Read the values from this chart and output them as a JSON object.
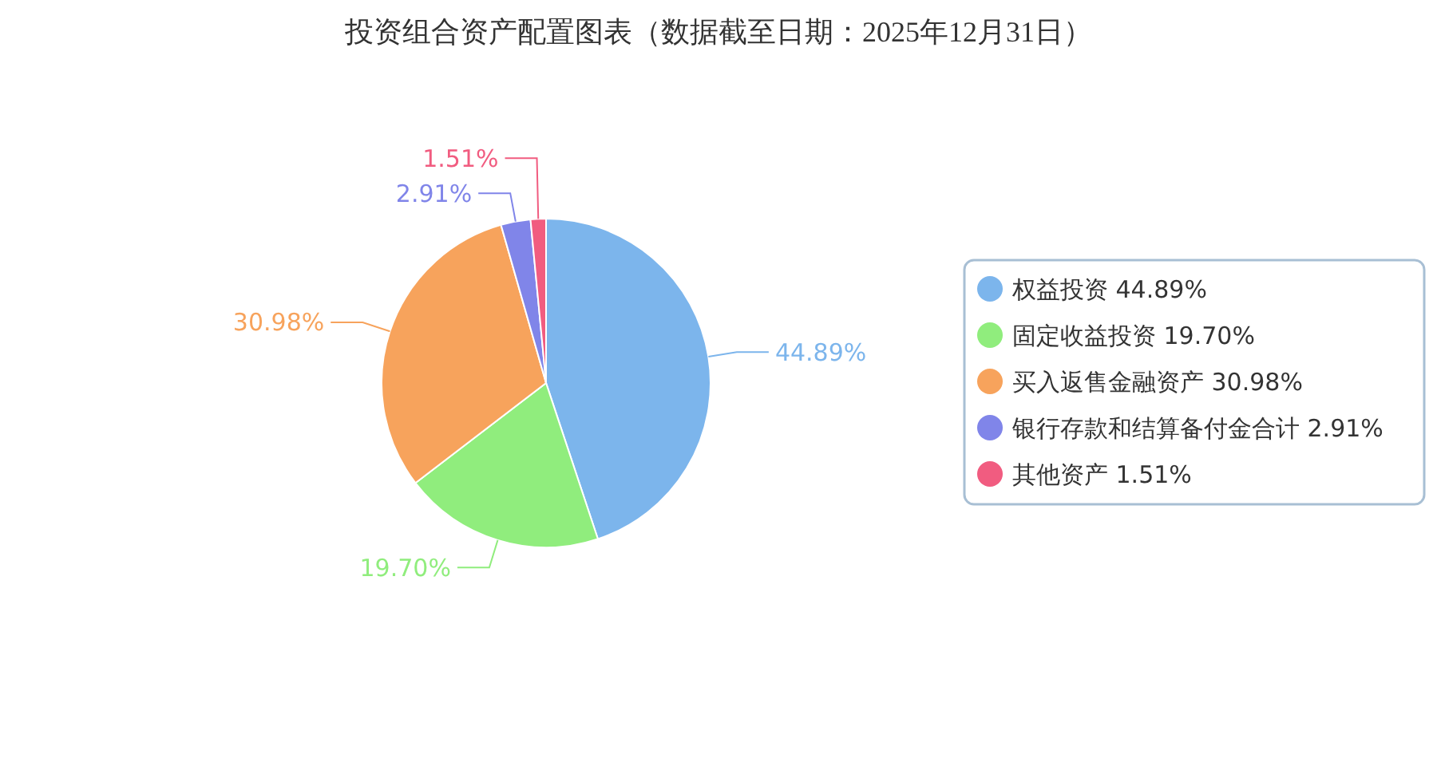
{
  "chart_data": {
    "type": "pie",
    "title": "投资组合资产配置图表（数据截至日期：2025年12月31日）",
    "categories": [
      "权益投资",
      "固定收益投资",
      "买入返售金融资产",
      "银行存款和结算备付金合计",
      "其他资产"
    ],
    "values": [
      44.89,
      19.7,
      30.98,
      2.91,
      1.51
    ],
    "value_labels": [
      "44.89%",
      "19.70%",
      "30.98%",
      "2.91%",
      "1.51%"
    ],
    "colors": [
      "#7cb5ec",
      "#90ed7d",
      "#f7a35c",
      "#8085e9",
      "#f15c80"
    ],
    "legend": "right"
  }
}
